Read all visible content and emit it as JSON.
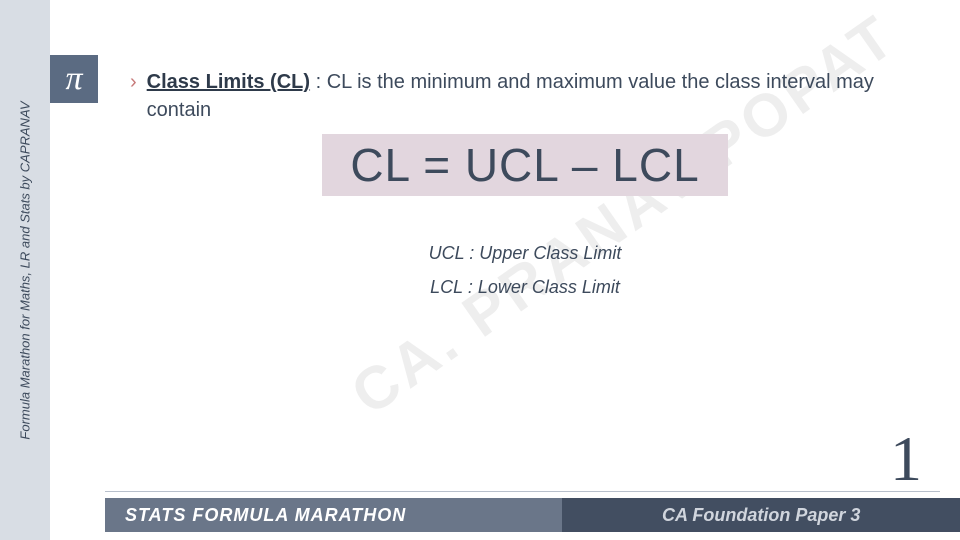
{
  "sidebar": {
    "rotated_label": "Formula Marathon for Maths, LR and Stats by CAPRANAV",
    "pi_symbol": "π"
  },
  "content": {
    "bullet": "›",
    "term": "Class Limits (CL)",
    "definition_text": " : CL is the minimum and maximum value the class interval may contain",
    "formula": "CL = UCL – LCL",
    "ucl_def": "UCL : Upper Class Limit",
    "lcl_def": "LCL : Lower Class Limit"
  },
  "watermark": "CA. PRANAV POPAT",
  "page_number": "1",
  "footer": {
    "left": "STATS FORMULA MARATHON",
    "right": "CA Foundation Paper 3"
  },
  "colors": {
    "sidebar_bg": "#d8dde4",
    "pi_bg": "#5b6b82",
    "text": "#3d4a5c",
    "formula_bg": "#e2d6de",
    "footer_left_bg": "#6a7689",
    "footer_right_bg": "#424e61"
  }
}
